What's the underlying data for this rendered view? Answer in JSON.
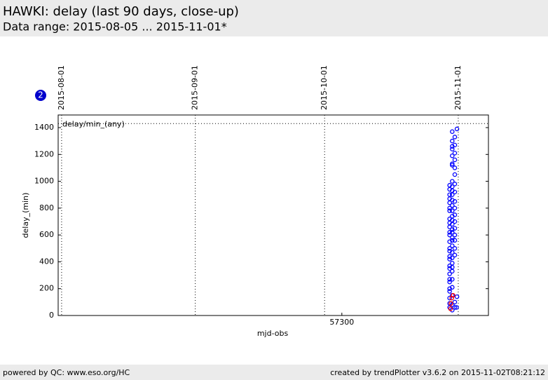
{
  "header": {
    "title": "HAWKI: delay (last 90 days, close-up)",
    "subtitle": "Data range: 2015-08-05 ... 2015-11-01*",
    "badge": "2"
  },
  "footer": {
    "left": "powered by QC: www.eso.org/HC",
    "right": "created by trendPlotter v3.6.2 on 2015-11-02T08:21:12"
  },
  "chart_data": {
    "type": "scatter",
    "xlabel": "mjd-obs",
    "ylabel": "delay_(min)",
    "xlim": [
      57234.2,
      57334
    ],
    "xticks": [
      57300
    ],
    "x2ticks": [
      {
        "value": 57235,
        "label": "2015-08-01"
      },
      {
        "value": 57266,
        "label": "2015-09-01"
      },
      {
        "value": 57296,
        "label": "2015-10-01"
      },
      {
        "value": 57327,
        "label": "2015-11-01"
      }
    ],
    "ylim": [
      0,
      1494
    ],
    "yticks": [
      0,
      200,
      400,
      600,
      800,
      1000,
      1200,
      1400
    ],
    "threshold": {
      "value": 1430,
      "label": "delay/min_(any)"
    },
    "series": [
      {
        "color": "#0000ff",
        "x": [
          57325.0,
          57325.0,
          57325.0,
          57325.0,
          57325.0,
          57325.0,
          57325.0,
          57325.0,
          57325.0,
          57325.0,
          57325.0,
          57325.0,
          57325.0,
          57325.0,
          57325.0,
          57325.0,
          57325.0,
          57325.0,
          57325.0,
          57325.0,
          57325.0,
          57325.0,
          57325.0,
          57325.0,
          57325.0,
          57325.0,
          57325.0,
          57325.6,
          57325.6,
          57325.6,
          57325.6,
          57325.6,
          57325.6,
          57325.6,
          57325.6,
          57325.6,
          57325.6,
          57325.6,
          57325.6,
          57325.6,
          57325.6,
          57325.6,
          57325.6,
          57325.6,
          57325.6,
          57325.6,
          57325.6,
          57325.6,
          57325.6,
          57325.6,
          57325.6,
          57325.6,
          57325.6,
          57325.6,
          57325.6,
          57325.6,
          57325.6,
          57325.6,
          57325.6,
          57326.2,
          57326.2,
          57326.2,
          57326.2,
          57326.2,
          57326.2,
          57326.2,
          57326.2,
          57326.2,
          57326.2,
          57326.2,
          57326.2,
          57326.2,
          57326.2,
          57326.2,
          57326.2,
          57326.2,
          57326.2,
          57326.2,
          57326.7,
          57326.7,
          57326.6
        ],
        "values": [
          60,
          90,
          130,
          180,
          200,
          250,
          270,
          310,
          350,
          370,
          420,
          440,
          480,
          500,
          550,
          600,
          620,
          660,
          690,
          720,
          780,
          800,
          840,
          870,
          900,
          940,
          970,
          40,
          80,
          150,
          210,
          270,
          330,
          360,
          390,
          430,
          470,
          520,
          560,
          580,
          620,
          640,
          680,
          710,
          740,
          780,
          820,
          860,
          900,
          930,
          960,
          1000,
          1120,
          1130,
          1190,
          1240,
          1260,
          1300,
          1370,
          60,
          100,
          450,
          500,
          560,
          600,
          650,
          700,
          750,
          800,
          850,
          920,
          980,
          1050,
          1100,
          1160,
          1210,
          1270,
          1330,
          1390,
          140,
          60
        ]
      },
      {
        "color": "#ff0000",
        "x": [
          57325.2,
          57325.5,
          57325.8,
          57325.3
        ],
        "values": [
          50,
          130,
          150,
          90
        ]
      }
    ]
  }
}
